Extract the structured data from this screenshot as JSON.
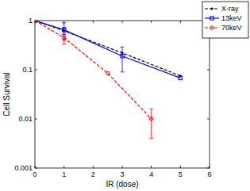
{
  "chart_data": {
    "type": "line",
    "x_label": "IR (dose)",
    "y_label": "Cell Survival",
    "log": "y",
    "xlim": [
      0,
      6
    ],
    "xticks": [
      0,
      1,
      2,
      3,
      4,
      5,
      6
    ],
    "ylim": [
      0.001,
      1
    ],
    "yticks": [
      0.001,
      0.01,
      0.1,
      1
    ],
    "grid": false,
    "legend": "upper right",
    "series": [
      {
        "name": "X-ray",
        "color": "#000000",
        "marker": "dot",
        "line_style": "dashed",
        "x": [
          0,
          1,
          3,
          5
        ],
        "values": [
          1,
          0.62,
          0.22,
          0.075
        ],
        "errors": [
          null,
          0.1,
          null,
          null
        ]
      },
      {
        "name": "13keV",
        "color": "#0000ff",
        "marker": "square",
        "line_style": "solid",
        "x": [
          0,
          1,
          3,
          5
        ],
        "values": [
          1,
          0.65,
          0.19,
          0.068
        ],
        "errors": [
          null,
          0.25,
          0.1,
          null
        ]
      },
      {
        "name": "70keV",
        "color": "#ff0000",
        "marker": "circle",
        "line_style": "dashed",
        "x": [
          0,
          1,
          2.5,
          4
        ],
        "values": [
          1,
          0.45,
          0.085,
          0.01
        ],
        "errors": [
          null,
          0.12,
          null,
          0.006
        ]
      }
    ]
  }
}
